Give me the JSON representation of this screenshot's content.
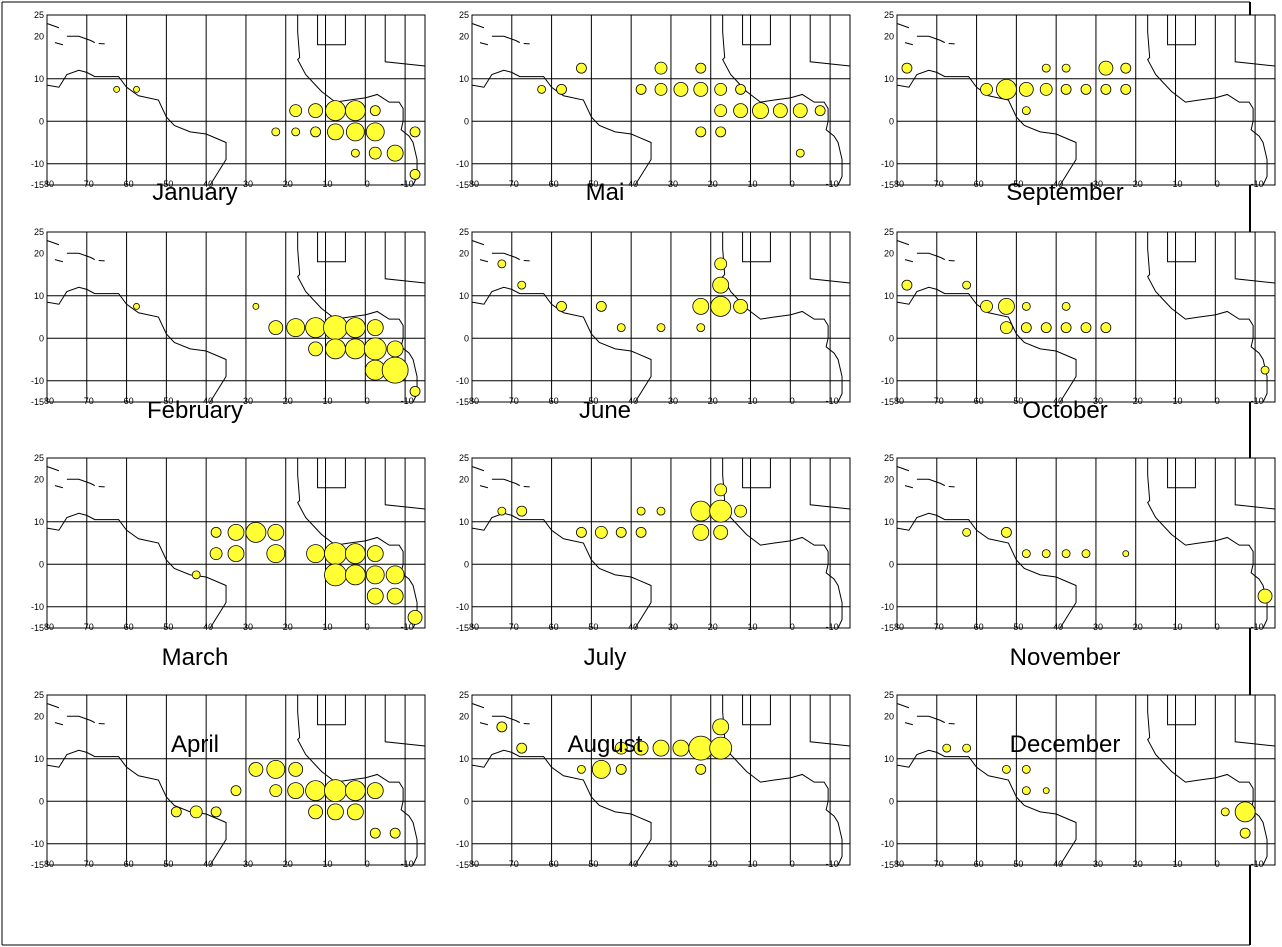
{
  "lat_ticks": [
    25,
    20,
    10,
    0,
    -10,
    -15
  ],
  "lon_ticks": [
    80,
    70,
    60,
    50,
    40,
    30,
    20,
    10,
    0,
    -10
  ],
  "panels": [
    {
      "label": "January",
      "bubbles": [
        [
          -17.5,
          2.5,
          6
        ],
        [
          -12.5,
          2.5,
          7
        ],
        [
          -7.5,
          2.5,
          10
        ],
        [
          -2.5,
          2.5,
          10
        ],
        [
          2.5,
          2.5,
          5
        ],
        [
          -22.5,
          -2.5,
          4
        ],
        [
          -17.5,
          -2.5,
          4
        ],
        [
          -12.5,
          -2.5,
          5
        ],
        [
          -7.5,
          -2.5,
          8
        ],
        [
          -2.5,
          -2.5,
          9
        ],
        [
          2.5,
          -2.5,
          9
        ],
        [
          7.5,
          -7.5,
          8
        ],
        [
          12.5,
          -12.5,
          5
        ],
        [
          12.5,
          -2.5,
          5
        ],
        [
          -62.5,
          7.5,
          3
        ],
        [
          -57.5,
          7.5,
          3
        ],
        [
          -2.5,
          -7.5,
          4
        ],
        [
          2.5,
          -7.5,
          6
        ]
      ]
    },
    {
      "label": "February",
      "bubbles": [
        [
          -22.5,
          2.5,
          7
        ],
        [
          -17.5,
          2.5,
          9
        ],
        [
          -12.5,
          2.5,
          10
        ],
        [
          -7.5,
          2.5,
          12
        ],
        [
          -2.5,
          2.5,
          10
        ],
        [
          2.5,
          2.5,
          8
        ],
        [
          -12.5,
          -2.5,
          7
        ],
        [
          -7.5,
          -2.5,
          10
        ],
        [
          -2.5,
          -2.5,
          10
        ],
        [
          2.5,
          -2.5,
          11
        ],
        [
          7.5,
          -2.5,
          8
        ],
        [
          2.5,
          -7.5,
          10
        ],
        [
          7.5,
          -7.5,
          13
        ],
        [
          12.5,
          -12.5,
          5
        ],
        [
          -27.5,
          7.5,
          3
        ],
        [
          -57.5,
          7.5,
          3
        ]
      ]
    },
    {
      "label": "March",
      "bubbles": [
        [
          -37.5,
          7.5,
          5
        ],
        [
          -32.5,
          7.5,
          8
        ],
        [
          -27.5,
          7.5,
          10
        ],
        [
          -22.5,
          7.5,
          8
        ],
        [
          -37.5,
          2.5,
          6
        ],
        [
          -32.5,
          2.5,
          8
        ],
        [
          -22.5,
          2.5,
          9
        ],
        [
          -12.5,
          2.5,
          9
        ],
        [
          -7.5,
          2.5,
          11
        ],
        [
          -2.5,
          2.5,
          10
        ],
        [
          2.5,
          2.5,
          8
        ],
        [
          -7.5,
          -2.5,
          11
        ],
        [
          -2.5,
          -2.5,
          10
        ],
        [
          2.5,
          -2.5,
          9
        ],
        [
          7.5,
          -2.5,
          9
        ],
        [
          2.5,
          -7.5,
          8
        ],
        [
          7.5,
          -7.5,
          8
        ],
        [
          12.5,
          -12.5,
          7
        ],
        [
          -42.5,
          -2.5,
          4
        ]
      ]
    },
    {
      "label": "April",
      "bubbles": [
        [
          -27.5,
          7.5,
          7
        ],
        [
          -22.5,
          7.5,
          9
        ],
        [
          -17.5,
          7.5,
          7
        ],
        [
          -32.5,
          2.5,
          5
        ],
        [
          -22.5,
          2.5,
          6
        ],
        [
          -17.5,
          2.5,
          8
        ],
        [
          -12.5,
          2.5,
          10
        ],
        [
          -7.5,
          2.5,
          11
        ],
        [
          -2.5,
          2.5,
          10
        ],
        [
          2.5,
          2.5,
          8
        ],
        [
          -47.5,
          -2.5,
          5
        ],
        [
          -42.5,
          -2.5,
          6
        ],
        [
          -37.5,
          -2.5,
          5
        ],
        [
          -12.5,
          -2.5,
          7
        ],
        [
          -7.5,
          -2.5,
          8
        ],
        [
          -2.5,
          -2.5,
          8
        ],
        [
          2.5,
          -7.5,
          5
        ],
        [
          7.5,
          -7.5,
          5
        ]
      ]
    },
    {
      "label": "Mai",
      "bubbles": [
        [
          -52.5,
          12.5,
          5
        ],
        [
          -32.5,
          12.5,
          6
        ],
        [
          -22.5,
          12.5,
          5
        ],
        [
          -37.5,
          7.5,
          5
        ],
        [
          -32.5,
          7.5,
          6
        ],
        [
          -27.5,
          7.5,
          7
        ],
        [
          -22.5,
          7.5,
          7
        ],
        [
          -17.5,
          7.5,
          6
        ],
        [
          -12.5,
          7.5,
          5
        ],
        [
          -17.5,
          2.5,
          6
        ],
        [
          -12.5,
          2.5,
          7
        ],
        [
          -7.5,
          2.5,
          8
        ],
        [
          -2.5,
          2.5,
          7
        ],
        [
          2.5,
          2.5,
          7
        ],
        [
          7.5,
          2.5,
          5
        ],
        [
          -22.5,
          -2.5,
          5
        ],
        [
          -17.5,
          -2.5,
          5
        ],
        [
          2.5,
          -7.5,
          4
        ],
        [
          -62.5,
          7.5,
          4
        ],
        [
          -57.5,
          7.5,
          5
        ]
      ]
    },
    {
      "label": "June",
      "bubbles": [
        [
          -22.5,
          7.5,
          8
        ],
        [
          -17.5,
          7.5,
          10
        ],
        [
          -12.5,
          7.5,
          7
        ],
        [
          -17.5,
          12.5,
          8
        ],
        [
          -17.5,
          17.5,
          6
        ],
        [
          -47.5,
          7.5,
          5
        ],
        [
          -57.5,
          7.5,
          5
        ],
        [
          -42.5,
          2.5,
          4
        ],
        [
          -32.5,
          2.5,
          4
        ],
        [
          -22.5,
          2.5,
          4
        ],
        [
          -67.5,
          12.5,
          4
        ],
        [
          -72.5,
          17.5,
          4
        ]
      ]
    },
    {
      "label": "July",
      "bubbles": [
        [
          -22.5,
          12.5,
          10
        ],
        [
          -17.5,
          12.5,
          11
        ],
        [
          -22.5,
          7.5,
          8
        ],
        [
          -17.5,
          7.5,
          7
        ],
        [
          -12.5,
          12.5,
          6
        ],
        [
          -17.5,
          17.5,
          6
        ],
        [
          -52.5,
          7.5,
          5
        ],
        [
          -47.5,
          7.5,
          6
        ],
        [
          -42.5,
          7.5,
          5
        ],
        [
          -37.5,
          7.5,
          5
        ],
        [
          -67.5,
          12.5,
          5
        ],
        [
          -72.5,
          12.5,
          4
        ],
        [
          -37.5,
          12.5,
          4
        ],
        [
          -32.5,
          12.5,
          4
        ]
      ]
    },
    {
      "label": "August",
      "bubbles": [
        [
          -27.5,
          12.5,
          8
        ],
        [
          -22.5,
          12.5,
          12
        ],
        [
          -17.5,
          12.5,
          11
        ],
        [
          -17.5,
          17.5,
          8
        ],
        [
          -32.5,
          12.5,
          8
        ],
        [
          -37.5,
          12.5,
          7
        ],
        [
          -42.5,
          12.5,
          6
        ],
        [
          -47.5,
          7.5,
          9
        ],
        [
          -42.5,
          7.5,
          5
        ],
        [
          -72.5,
          17.5,
          5
        ],
        [
          -67.5,
          12.5,
          5
        ],
        [
          -22.5,
          7.5,
          5
        ],
        [
          -52.5,
          7.5,
          4
        ]
      ]
    },
    {
      "label": "September",
      "bubbles": [
        [
          -52.5,
          7.5,
          10
        ],
        [
          -47.5,
          7.5,
          7
        ],
        [
          -57.5,
          7.5,
          6
        ],
        [
          -42.5,
          7.5,
          6
        ],
        [
          -37.5,
          7.5,
          5
        ],
        [
          -32.5,
          7.5,
          5
        ],
        [
          -27.5,
          12.5,
          7
        ],
        [
          -22.5,
          12.5,
          5
        ],
        [
          -27.5,
          7.5,
          5
        ],
        [
          -22.5,
          7.5,
          5
        ],
        [
          -77.5,
          12.5,
          5
        ],
        [
          -47.5,
          2.5,
          4
        ],
        [
          -37.5,
          12.5,
          4
        ],
        [
          -42.5,
          12.5,
          4
        ]
      ]
    },
    {
      "label": "October",
      "bubbles": [
        [
          -52.5,
          7.5,
          8
        ],
        [
          -57.5,
          7.5,
          6
        ],
        [
          -52.5,
          2.5,
          6
        ],
        [
          -47.5,
          2.5,
          5
        ],
        [
          -42.5,
          2.5,
          5
        ],
        [
          -37.5,
          2.5,
          5
        ],
        [
          -32.5,
          2.5,
          5
        ],
        [
          -27.5,
          2.5,
          5
        ],
        [
          -77.5,
          12.5,
          5
        ],
        [
          -62.5,
          12.5,
          4
        ],
        [
          -47.5,
          7.5,
          4
        ],
        [
          -37.5,
          7.5,
          4
        ],
        [
          12.5,
          -7.5,
          4
        ]
      ]
    },
    {
      "label": "November",
      "bubbles": [
        [
          -52.5,
          7.5,
          5
        ],
        [
          -47.5,
          2.5,
          4
        ],
        [
          -42.5,
          2.5,
          4
        ],
        [
          -37.5,
          2.5,
          4
        ],
        [
          -32.5,
          2.5,
          4
        ],
        [
          12.5,
          -7.5,
          7
        ],
        [
          -62.5,
          7.5,
          4
        ],
        [
          -22.5,
          2.5,
          3
        ]
      ]
    },
    {
      "label": "December",
      "bubbles": [
        [
          7.5,
          -2.5,
          10
        ],
        [
          7.5,
          -7.5,
          5
        ],
        [
          2.5,
          -2.5,
          4
        ],
        [
          -47.5,
          2.5,
          4
        ],
        [
          -42.5,
          2.5,
          3
        ],
        [
          -67.5,
          12.5,
          4
        ],
        [
          -62.5,
          12.5,
          4
        ],
        [
          -52.5,
          7.5,
          4
        ],
        [
          -47.5,
          7.5,
          4
        ]
      ]
    }
  ]
}
